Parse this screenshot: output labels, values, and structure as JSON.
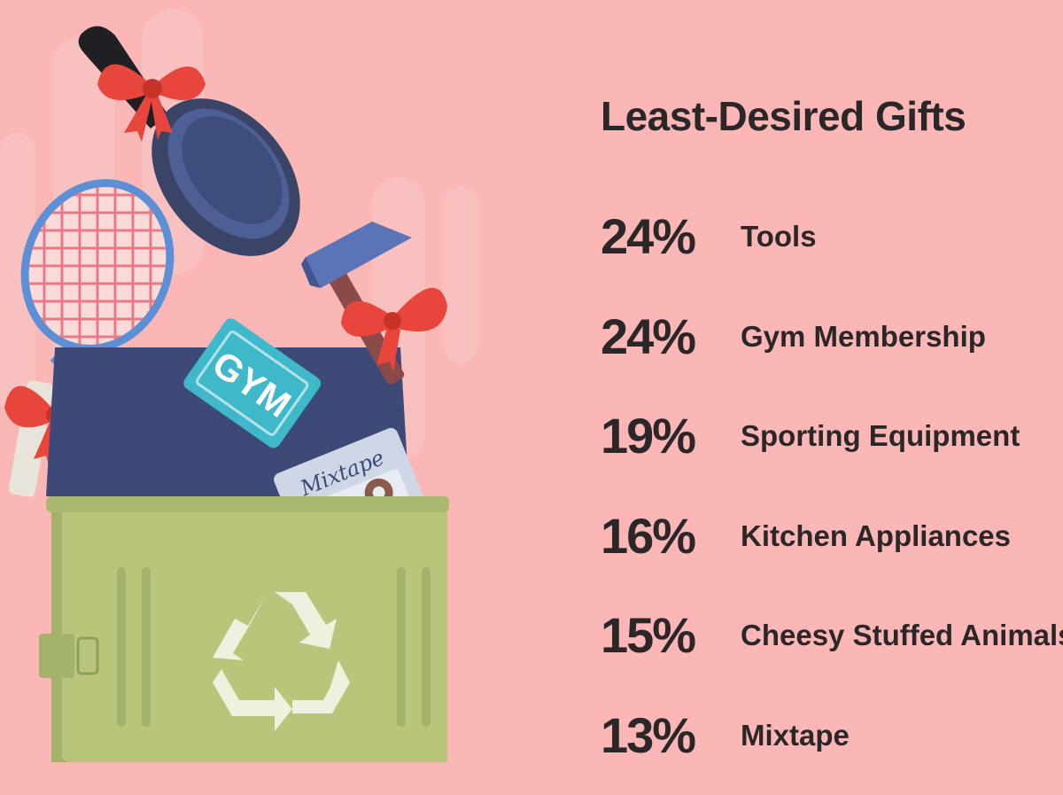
{
  "title": "Least-Desired Gifts",
  "gifts": [
    {
      "percent": "24%",
      "label": "Tools"
    },
    {
      "percent": "24%",
      "label": "Gym Membership"
    },
    {
      "percent": "19%",
      "label": "Sporting Equipment"
    },
    {
      "percent": "16%",
      "label": "Kitchen Appliances"
    },
    {
      "percent": "15%",
      "label": "Cheesy Stuffed Animals"
    },
    {
      "percent": "13%",
      "label": "Mixtape"
    }
  ],
  "illustration": {
    "gym_card_text": "GYM",
    "cassette_text": "Mixtape",
    "icons": [
      "frying-pan-icon",
      "tennis-racket-icon",
      "hammer-icon",
      "gift-bow-icon",
      "gym-card-icon",
      "cassette-icon",
      "recycle-bin-icon",
      "recycle-symbol-icon"
    ]
  },
  "colors": {
    "background": "#fbb7b5",
    "text": "#2b2628",
    "bin": "#b7c67a",
    "lid": "#3d4a78",
    "bow": "#e8453c",
    "gym_card": "#3fb8c9"
  }
}
